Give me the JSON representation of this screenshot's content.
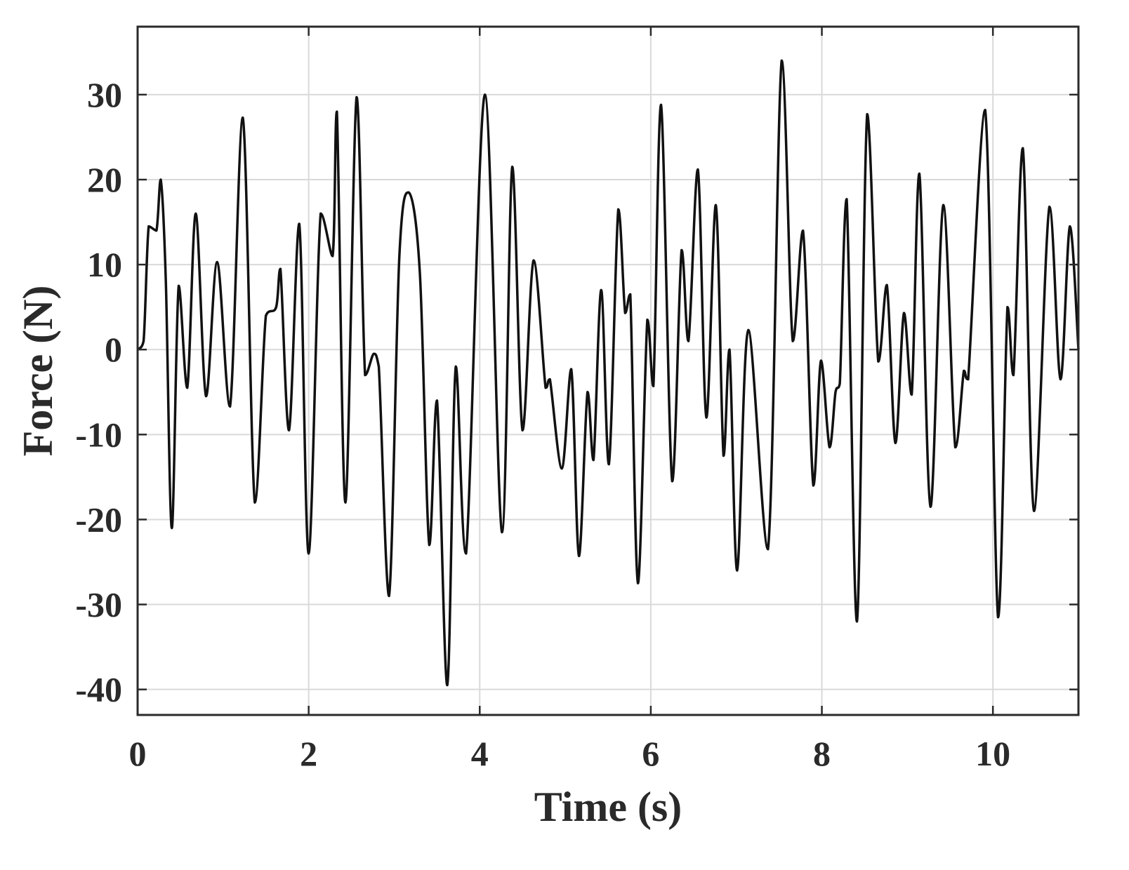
{
  "chart_data": {
    "type": "line",
    "title": "",
    "xlabel": "Time (s)",
    "ylabel": "Force (N)",
    "xlim": [
      0,
      11
    ],
    "ylim": [
      -43,
      38
    ],
    "xticks": [
      0,
      2,
      4,
      6,
      8,
      10
    ],
    "yticks": [
      -40,
      -30,
      -20,
      -10,
      0,
      10,
      20,
      30
    ],
    "xtick_labels": [
      "0",
      "2",
      "4",
      "6",
      "8",
      "10"
    ],
    "ytick_labels": [
      "-40",
      "-30",
      "-20",
      "-10",
      "0",
      "10",
      "20",
      "30"
    ],
    "grid": true,
    "box": true,
    "line_color": "#111111",
    "grid_color": "#d9d9d9",
    "axis_color": "#2a2a2a",
    "series": [
      {
        "x": [
          0,
          0.07,
          0.13,
          0.22,
          0.27,
          0.33,
          0.4,
          0.48,
          0.58,
          0.68,
          0.8,
          0.93,
          1.08,
          1.23,
          1.37,
          1.5,
          1.62,
          1.67,
          1.77,
          1.89,
          2.0,
          2.14,
          2.28,
          2.33,
          2.43,
          2.56,
          2.66,
          2.76,
          2.82,
          2.94,
          3.06,
          3.17,
          3.3,
          3.41,
          3.5,
          3.62,
          3.72,
          3.84,
          4.06,
          4.26,
          4.38,
          4.5,
          4.63,
          4.77,
          4.82,
          4.96,
          5.07,
          5.16,
          5.26,
          5.33,
          5.42,
          5.51,
          5.62,
          5.7,
          5.76,
          5.85,
          5.96,
          6.03,
          6.12,
          6.25,
          6.36,
          6.44,
          6.55,
          6.65,
          6.76,
          6.85,
          6.92,
          7.01,
          7.14,
          7.37,
          7.53,
          7.66,
          7.78,
          7.9,
          7.99,
          8.09,
          8.16,
          8.21,
          8.29,
          8.41,
          8.53,
          8.66,
          8.76,
          8.86,
          8.96,
          9.05,
          9.14,
          9.27,
          9.42,
          9.56,
          9.66,
          9.71,
          9.91,
          10.06,
          10.17,
          10.24,
          10.35,
          10.48,
          10.66,
          10.79,
          10.9,
          11.0
        ],
        "y": [
          0,
          1,
          14.5,
          14,
          20,
          8,
          -21,
          7.5,
          -4.5,
          16,
          -5.5,
          10.3,
          -6.7,
          27.3,
          -18,
          4,
          5,
          9.5,
          -9.5,
          14.8,
          -24,
          16,
          11,
          28,
          -18,
          29.7,
          -3,
          -0.5,
          -2,
          -29,
          11,
          18.5,
          9,
          -23,
          -6,
          -39.5,
          -2,
          -24,
          30,
          -21.5,
          21.5,
          -9.5,
          10.5,
          -4.5,
          -3.5,
          -14,
          -2.3,
          -24.3,
          -5,
          -13,
          7,
          -13.5,
          16.5,
          4.3,
          6.5,
          -27.5,
          3.5,
          -4.3,
          28.8,
          -15.5,
          11.7,
          1,
          21.2,
          -8,
          17,
          -12.5,
          0,
          -26,
          2.3,
          -23.5,
          34,
          1,
          14,
          -16,
          -1.3,
          -11.5,
          -5,
          -4,
          17.7,
          -32,
          27.7,
          -1.4,
          7.6,
          -11,
          4.3,
          -5.3,
          20.7,
          -18.5,
          17,
          -11.5,
          -2.5,
          -3.5,
          28.2,
          -31.5,
          5,
          -3,
          23.7,
          -19,
          16.8,
          -3.5,
          14.5,
          0
        ]
      }
    ]
  }
}
